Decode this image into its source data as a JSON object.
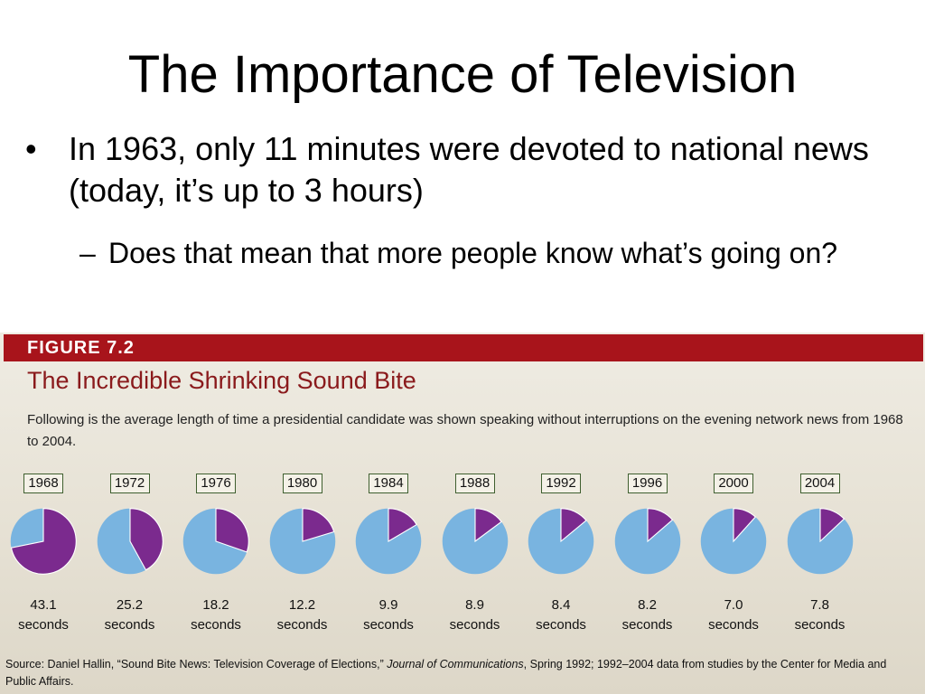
{
  "slide": {
    "title": "The Importance of Television",
    "bullet_mark": "•",
    "bullet1": "In 1963, only 11 minutes were devoted to national news (today, it’s up to 3 hours)",
    "sub_mark": "–",
    "bullet2": "Does that mean that more people know what’s going on?"
  },
  "figure": {
    "number": "FIGURE 7.2",
    "title": "The Incredible Shrinking Sound Bite",
    "description": "Following is the average length of time a presidential candidate was shown speaking without interruptions on the evening network news from 1968 to 2004.",
    "source_pre": "Source: Daniel Hallin, “Sound Bite News: Television Coverage of Elections,” ",
    "source_journal": "Journal of Communications",
    "source_post": ", Spring 1992; 1992–2004 data from studies by the Center for Media and Public Affairs.",
    "unit_label": "seconds",
    "colors": {
      "header": "#a8141b",
      "slice": "#7b2a8e",
      "pie": "#79b4e0",
      "title": "#8a1a1c"
    }
  },
  "chart_data": {
    "type": "pie",
    "categories": [
      "1968",
      "1972",
      "1976",
      "1980",
      "1984",
      "1988",
      "1992",
      "1996",
      "2000",
      "2004"
    ],
    "values": [
      43.1,
      25.2,
      18.2,
      12.2,
      9.9,
      8.9,
      8.4,
      8.2,
      7.0,
      7.8
    ],
    "value_labels": [
      "43.1",
      "25.2",
      "18.2",
      "12.2",
      "9.9",
      "8.9",
      "8.4",
      "8.2",
      "7.0",
      "7.8"
    ],
    "unit": "seconds",
    "pie_full_scale": 60
  }
}
